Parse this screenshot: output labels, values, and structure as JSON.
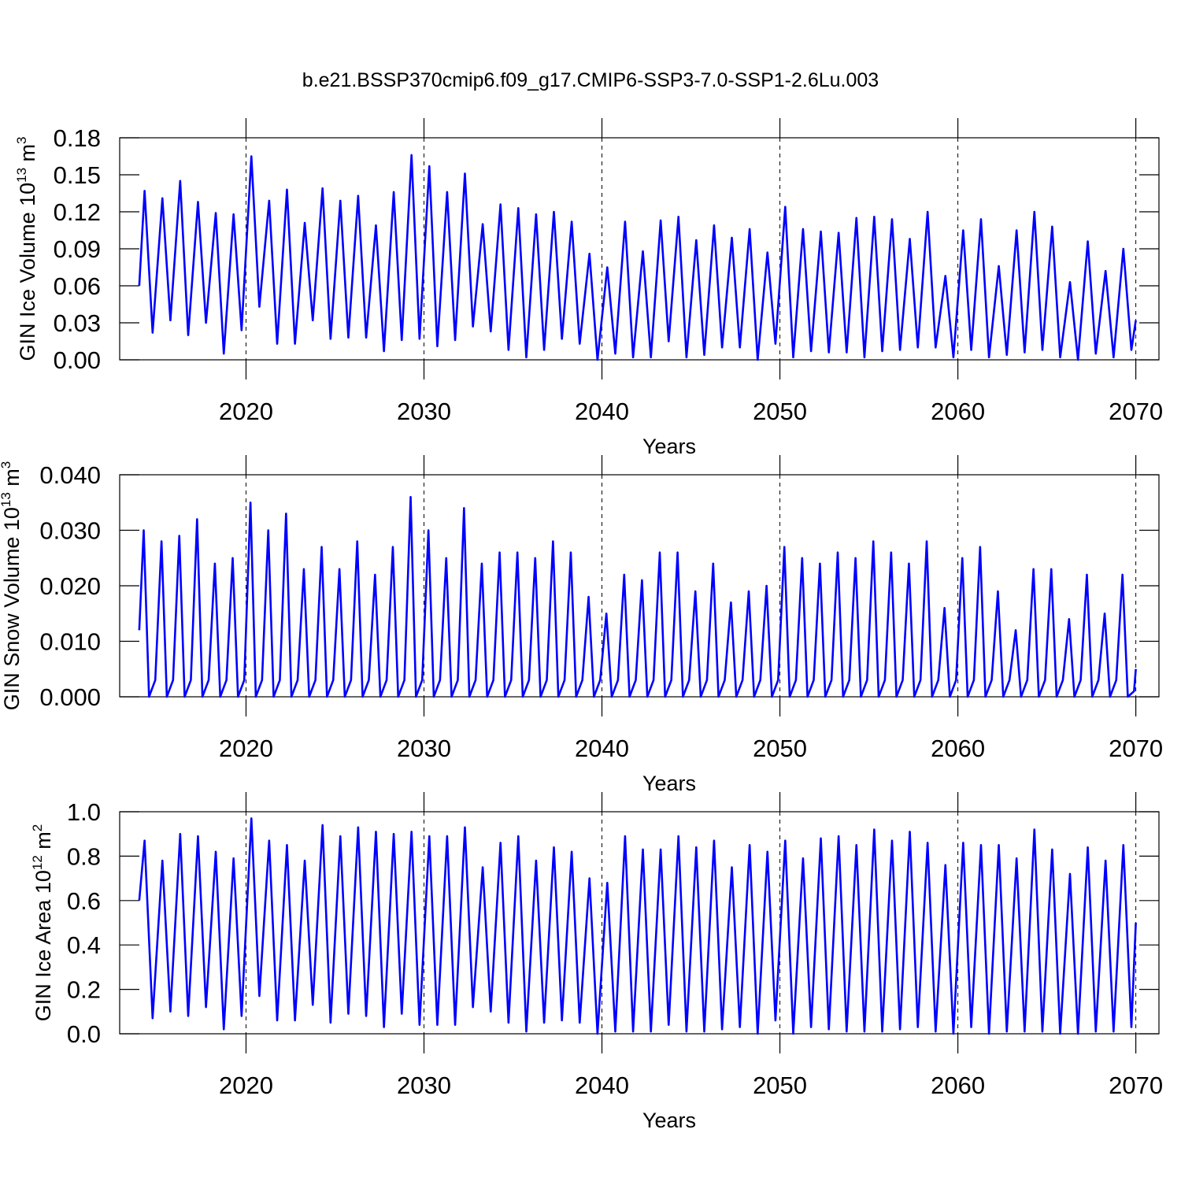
{
  "chart_data": [
    {
      "type": "line",
      "title": "b.e21.BSSP370cmip6.f09_g17.CMIP6-SSP3-7.0-SSP1-2.6Lu.003",
      "ylabel": [
        "GIN Ice Volume 10",
        "13",
        " m",
        "3"
      ],
      "xlabel": "Years",
      "color": "#0000ff",
      "grid": true,
      "xlim": [
        2012.9,
        2071.3
      ],
      "xticks": [
        2020,
        2030,
        2040,
        2050,
        2060,
        2070
      ],
      "ylim": [
        0,
        0.18
      ],
      "yticks": [
        {
          "value": 0,
          "label": "0.00"
        },
        0.03,
        0.06,
        0.09,
        0.12,
        0.15,
        0.18
      ],
      "x": [
        2014,
        2014.3,
        2014.75,
        2015.3,
        2015.75,
        2016.3,
        2016.75,
        2017.3,
        2017.75,
        2018.3,
        2018.75,
        2019.3,
        2019.75,
        2020.3,
        2020.75,
        2021.3,
        2021.75,
        2022.3,
        2022.75,
        2023.3,
        2023.75,
        2024.3,
        2024.75,
        2025.3,
        2025.75,
        2026.3,
        2026.75,
        2027.3,
        2027.75,
        2028.3,
        2028.75,
        2029.3,
        2029.75,
        2030.3,
        2030.75,
        2031.3,
        2031.75,
        2032.3,
        2032.75,
        2033.3,
        2033.75,
        2034.3,
        2034.75,
        2035.3,
        2035.75,
        2036.3,
        2036.75,
        2037.3,
        2037.75,
        2038.3,
        2038.75,
        2039.3,
        2039.75,
        2040.3,
        2040.75,
        2041.3,
        2041.75,
        2042.3,
        2042.75,
        2043.3,
        2043.75,
        2044.3,
        2044.75,
        2045.3,
        2045.75,
        2046.3,
        2046.75,
        2047.3,
        2047.75,
        2048.3,
        2048.75,
        2049.3,
        2049.75,
        2050.3,
        2050.75,
        2051.3,
        2051.75,
        2052.3,
        2052.75,
        2053.3,
        2053.75,
        2054.3,
        2054.75,
        2055.3,
        2055.75,
        2056.3,
        2056.75,
        2057.3,
        2057.75,
        2058.3,
        2058.75,
        2059.3,
        2059.75,
        2060.3,
        2060.75,
        2061.3,
        2061.75,
        2062.3,
        2062.75,
        2063.3,
        2063.75,
        2064.3,
        2064.75,
        2065.3,
        2065.75,
        2066.3,
        2066.75,
        2067.3,
        2067.75,
        2068.3,
        2068.75,
        2069.3,
        2069.75,
        2070
      ],
      "values": [
        0.06,
        0.137,
        0.022,
        0.131,
        0.032,
        0.145,
        0.02,
        0.128,
        0.03,
        0.119,
        0.005,
        0.118,
        0.024,
        0.165,
        0.043,
        0.129,
        0.013,
        0.138,
        0.013,
        0.111,
        0.032,
        0.139,
        0.017,
        0.129,
        0.018,
        0.133,
        0.018,
        0.109,
        0.007,
        0.136,
        0.016,
        0.166,
        0.017,
        0.157,
        0.011,
        0.136,
        0.016,
        0.151,
        0.027,
        0.11,
        0.023,
        0.126,
        0.008,
        0.123,
        0.002,
        0.118,
        0.008,
        0.12,
        0.017,
        0.112,
        0.013,
        0.086,
        0.0,
        0.075,
        0.005,
        0.112,
        0.002,
        0.088,
        0.002,
        0.113,
        0.015,
        0.116,
        0.002,
        0.097,
        0.004,
        0.109,
        0.01,
        0.099,
        0.01,
        0.106,
        0.0,
        0.087,
        0.013,
        0.124,
        0.002,
        0.106,
        0.007,
        0.104,
        0.006,
        0.103,
        0.006,
        0.115,
        0.002,
        0.116,
        0.007,
        0.114,
        0.008,
        0.098,
        0.01,
        0.12,
        0.01,
        0.068,
        0.002,
        0.105,
        0.008,
        0.114,
        0.002,
        0.076,
        0.004,
        0.105,
        0.006,
        0.12,
        0.008,
        0.108,
        0.002,
        0.063,
        0.0,
        0.096,
        0.005,
        0.072,
        0.002,
        0.09,
        0.008,
        0.032
      ]
    },
    {
      "type": "line",
      "ylabel": [
        "GIN Snow Volume 10",
        "13",
        " m",
        "3"
      ],
      "xlabel": "Years",
      "color": "#0000ff",
      "grid": true,
      "xlim": [
        2012.9,
        2071.3
      ],
      "xticks": [
        2020,
        2030,
        2040,
        2050,
        2060,
        2070
      ],
      "ylim": [
        0,
        0.04
      ],
      "yticks": [
        {
          "value": 0,
          "label": "0.000"
        },
        {
          "value": 0.01,
          "label": "0.010"
        },
        {
          "value": 0.02,
          "label": "0.020"
        },
        {
          "value": 0.03,
          "label": "0.030"
        },
        {
          "value": 0.04,
          "label": "0.040"
        }
      ],
      "x": [
        2014,
        2014.25,
        2014.55,
        2014.9,
        2015.25,
        2015.55,
        2015.9,
        2016.25,
        2016.55,
        2016.9,
        2017.25,
        2017.55,
        2017.9,
        2018.25,
        2018.55,
        2018.9,
        2019.25,
        2019.55,
        2019.9,
        2020.25,
        2020.55,
        2020.9,
        2021.25,
        2021.55,
        2021.9,
        2022.25,
        2022.55,
        2022.9,
        2023.25,
        2023.55,
        2023.9,
        2024.25,
        2024.55,
        2024.9,
        2025.25,
        2025.55,
        2025.9,
        2026.25,
        2026.55,
        2026.9,
        2027.25,
        2027.55,
        2027.9,
        2028.25,
        2028.55,
        2028.9,
        2029.25,
        2029.55,
        2029.9,
        2030.25,
        2030.55,
        2030.9,
        2031.25,
        2031.55,
        2031.9,
        2032.25,
        2032.55,
        2032.9,
        2033.25,
        2033.55,
        2033.9,
        2034.25,
        2034.55,
        2034.9,
        2035.25,
        2035.55,
        2035.9,
        2036.25,
        2036.55,
        2036.9,
        2037.25,
        2037.55,
        2037.9,
        2038.25,
        2038.55,
        2038.9,
        2039.25,
        2039.55,
        2039.9,
        2040.25,
        2040.55,
        2040.9,
        2041.25,
        2041.55,
        2041.9,
        2042.25,
        2042.55,
        2042.9,
        2043.25,
        2043.55,
        2043.9,
        2044.25,
        2044.55,
        2044.9,
        2045.25,
        2045.55,
        2045.9,
        2046.25,
        2046.55,
        2046.9,
        2047.25,
        2047.55,
        2047.9,
        2048.25,
        2048.55,
        2048.9,
        2049.25,
        2049.55,
        2049.9,
        2050.25,
        2050.55,
        2050.9,
        2051.25,
        2051.55,
        2051.9,
        2052.25,
        2052.55,
        2052.9,
        2053.25,
        2053.55,
        2053.9,
        2054.25,
        2054.55,
        2054.9,
        2055.25,
        2055.55,
        2055.9,
        2056.25,
        2056.55,
        2056.9,
        2057.25,
        2057.55,
        2057.9,
        2058.25,
        2058.55,
        2058.9,
        2059.25,
        2059.55,
        2059.9,
        2060.25,
        2060.55,
        2060.9,
        2061.25,
        2061.55,
        2061.9,
        2062.25,
        2062.55,
        2062.9,
        2063.25,
        2063.55,
        2063.9,
        2064.25,
        2064.55,
        2064.9,
        2065.25,
        2065.55,
        2065.9,
        2066.25,
        2066.55,
        2066.9,
        2067.25,
        2067.55,
        2067.9,
        2068.25,
        2068.55,
        2068.9,
        2069.25,
        2069.55,
        2069.9,
        2070
      ],
      "values": [
        0.012,
        0.03,
        0.0,
        0.003,
        0.028,
        0.0,
        0.003,
        0.029,
        0.0,
        0.003,
        0.032,
        0.0,
        0.003,
        0.024,
        0.0,
        0.003,
        0.025,
        0.0,
        0.003,
        0.035,
        0.0,
        0.003,
        0.03,
        0.0,
        0.003,
        0.033,
        0.0,
        0.003,
        0.023,
        0.0,
        0.003,
        0.027,
        0.0,
        0.003,
        0.023,
        0.0,
        0.003,
        0.028,
        0.0,
        0.003,
        0.022,
        0.0,
        0.003,
        0.027,
        0.0,
        0.003,
        0.036,
        0.0,
        0.003,
        0.03,
        0.0,
        0.003,
        0.025,
        0.0,
        0.003,
        0.034,
        0.0,
        0.003,
        0.024,
        0.0,
        0.003,
        0.026,
        0.0,
        0.003,
        0.026,
        0.0,
        0.003,
        0.025,
        0.0,
        0.003,
        0.028,
        0.0,
        0.003,
        0.026,
        0.0,
        0.003,
        0.018,
        0.0,
        0.003,
        0.015,
        0.0,
        0.003,
        0.022,
        0.0,
        0.003,
        0.021,
        0.0,
        0.003,
        0.026,
        0.0,
        0.003,
        0.026,
        0.0,
        0.003,
        0.019,
        0.0,
        0.003,
        0.024,
        0.0,
        0.003,
        0.017,
        0.0,
        0.003,
        0.019,
        0.0,
        0.003,
        0.02,
        0.0,
        0.003,
        0.027,
        0.0,
        0.003,
        0.025,
        0.0,
        0.003,
        0.024,
        0.0,
        0.003,
        0.026,
        0.0,
        0.003,
        0.025,
        0.0,
        0.003,
        0.028,
        0.0,
        0.003,
        0.026,
        0.0,
        0.003,
        0.024,
        0.0,
        0.003,
        0.028,
        0.0,
        0.003,
        0.016,
        0.0,
        0.003,
        0.025,
        0.0,
        0.003,
        0.027,
        0.0,
        0.003,
        0.019,
        0.0,
        0.003,
        0.012,
        0.0,
        0.003,
        0.023,
        0.0,
        0.003,
        0.023,
        0.0,
        0.003,
        0.014,
        0.0,
        0.003,
        0.022,
        0.0,
        0.003,
        0.015,
        0.0,
        0.003,
        0.022,
        0.0,
        0.001,
        0.005
      ]
    },
    {
      "type": "line",
      "ylabel": [
        "GIN Ice Area 10",
        "12",
        " m",
        "2"
      ],
      "xlabel": "Years",
      "color": "#0000ff",
      "grid": true,
      "xlim": [
        2012.9,
        2071.3
      ],
      "xticks": [
        2020,
        2030,
        2040,
        2050,
        2060,
        2070
      ],
      "ylim": [
        0,
        1
      ],
      "yticks": [
        {
          "value": 0,
          "label": "0.0"
        },
        0.2,
        0.4,
        0.6,
        0.8,
        {
          "value": 1,
          "label": "1.0"
        }
      ],
      "x": [
        2014,
        2014.3,
        2014.75,
        2015.3,
        2015.75,
        2016.3,
        2016.75,
        2017.3,
        2017.75,
        2018.3,
        2018.75,
        2019.3,
        2019.75,
        2020.3,
        2020.75,
        2021.3,
        2021.75,
        2022.3,
        2022.75,
        2023.3,
        2023.75,
        2024.3,
        2024.75,
        2025.3,
        2025.75,
        2026.3,
        2026.75,
        2027.3,
        2027.75,
        2028.3,
        2028.75,
        2029.3,
        2029.75,
        2030.3,
        2030.75,
        2031.3,
        2031.75,
        2032.3,
        2032.75,
        2033.3,
        2033.75,
        2034.3,
        2034.75,
        2035.3,
        2035.75,
        2036.3,
        2036.75,
        2037.3,
        2037.75,
        2038.3,
        2038.75,
        2039.3,
        2039.75,
        2040.3,
        2040.75,
        2041.3,
        2041.75,
        2042.3,
        2042.75,
        2043.3,
        2043.75,
        2044.3,
        2044.75,
        2045.3,
        2045.75,
        2046.3,
        2046.75,
        2047.3,
        2047.75,
        2048.3,
        2048.75,
        2049.3,
        2049.75,
        2050.3,
        2050.75,
        2051.3,
        2051.75,
        2052.3,
        2052.75,
        2053.3,
        2053.75,
        2054.3,
        2054.75,
        2055.3,
        2055.75,
        2056.3,
        2056.75,
        2057.3,
        2057.75,
        2058.3,
        2058.75,
        2059.3,
        2059.75,
        2060.3,
        2060.75,
        2061.3,
        2061.75,
        2062.3,
        2062.75,
        2063.3,
        2063.75,
        2064.3,
        2064.75,
        2065.3,
        2065.75,
        2066.3,
        2066.75,
        2067.3,
        2067.75,
        2068.3,
        2068.75,
        2069.3,
        2069.75,
        2070
      ],
      "values": [
        0.6,
        0.87,
        0.07,
        0.78,
        0.1,
        0.9,
        0.08,
        0.89,
        0.12,
        0.82,
        0.02,
        0.79,
        0.08,
        0.97,
        0.17,
        0.87,
        0.06,
        0.85,
        0.06,
        0.78,
        0.13,
        0.94,
        0.05,
        0.89,
        0.09,
        0.93,
        0.08,
        0.91,
        0.03,
        0.9,
        0.09,
        0.91,
        0.04,
        0.89,
        0.04,
        0.89,
        0.04,
        0.93,
        0.12,
        0.75,
        0.1,
        0.86,
        0.05,
        0.89,
        0.01,
        0.78,
        0.05,
        0.84,
        0.06,
        0.82,
        0.05,
        0.7,
        0.0,
        0.68,
        0.01,
        0.89,
        0.01,
        0.83,
        0.01,
        0.83,
        0.04,
        0.89,
        0.01,
        0.84,
        0.01,
        0.87,
        0.02,
        0.75,
        0.03,
        0.85,
        0.0,
        0.82,
        0.06,
        0.87,
        0.0,
        0.79,
        0.03,
        0.88,
        0.02,
        0.89,
        0.01,
        0.85,
        0.01,
        0.92,
        0.01,
        0.87,
        0.02,
        0.91,
        0.03,
        0.86,
        0.01,
        0.76,
        0.0,
        0.86,
        0.03,
        0.85,
        0.0,
        0.85,
        0.01,
        0.79,
        0.01,
        0.92,
        0.01,
        0.83,
        0.0,
        0.72,
        0.0,
        0.84,
        0.01,
        0.78,
        0.01,
        0.85,
        0.03,
        0.5
      ]
    }
  ]
}
